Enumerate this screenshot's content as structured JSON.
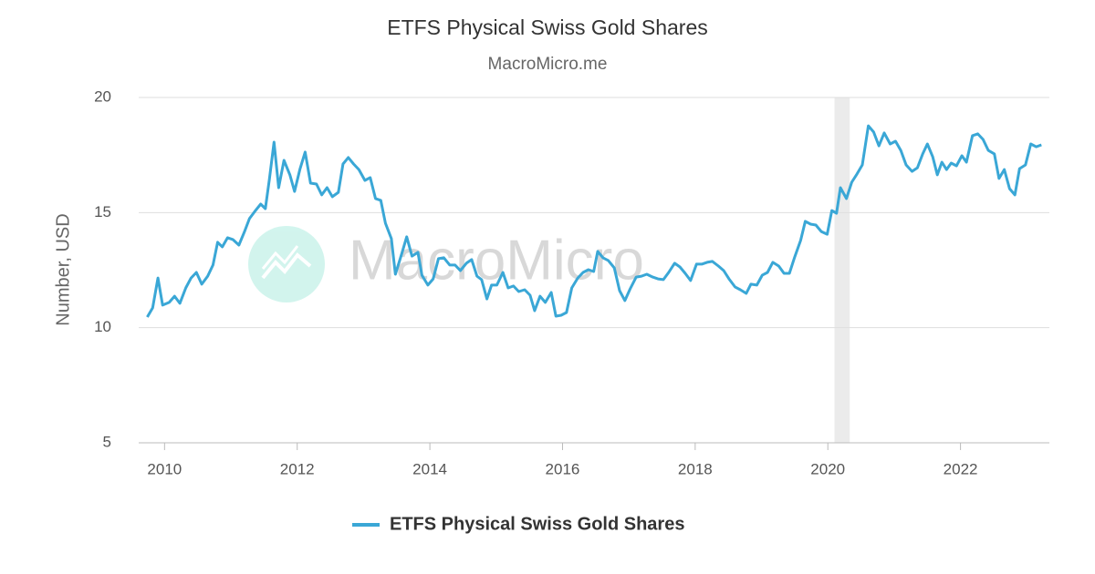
{
  "chart_data": {
    "type": "line",
    "title": "ETFS Physical Swiss Gold Shares",
    "subtitle": "MacroMicro.me",
    "watermark": "MacroMicro",
    "ylabel": "Number, USD",
    "xlim": [
      2009.61,
      2023.34
    ],
    "xticks": [
      2010,
      2012,
      2014,
      2016,
      2018,
      2020,
      2022
    ],
    "ylim": [
      5,
      20
    ],
    "yticks": [
      5,
      10,
      15,
      20
    ],
    "grid": true,
    "shade": [
      2020.1,
      2020.33
    ],
    "shade_color": "#ebebeb",
    "legend": "bottom",
    "x": [
      2009.74,
      2009.82,
      2009.9,
      2009.97,
      2010.07,
      2010.15,
      2010.23,
      2010.32,
      2010.4,
      2010.48,
      2010.56,
      2010.65,
      2010.73,
      2010.8,
      2010.87,
      2010.95,
      2011.03,
      2011.12,
      2011.2,
      2011.28,
      2011.36,
      2011.45,
      2011.52,
      2011.58,
      2011.65,
      2011.72,
      2011.8,
      2011.89,
      2011.96,
      2012.04,
      2012.12,
      2012.2,
      2012.29,
      2012.37,
      2012.45,
      2012.53,
      2012.62,
      2012.69,
      2012.77,
      2012.85,
      2012.93,
      2013.02,
      2013.1,
      2013.18,
      2013.26,
      2013.33,
      2013.42,
      2013.48,
      2013.57,
      2013.65,
      2013.73,
      2013.82,
      2013.88,
      2013.97,
      2014.05,
      2014.13,
      2014.21,
      2014.3,
      2014.38,
      2014.46,
      2014.55,
      2014.63,
      2014.71,
      2014.78,
      2014.86,
      2014.93,
      2015.01,
      2015.1,
      2015.18,
      2015.26,
      2015.34,
      2015.43,
      2015.51,
      2015.58,
      2015.66,
      2015.74,
      2015.83,
      2015.9,
      2015.98,
      2016.06,
      2016.14,
      2016.23,
      2016.31,
      2016.39,
      2016.47,
      2016.53,
      2016.61,
      2016.69,
      2016.78,
      2016.86,
      2016.94,
      2017.02,
      2017.11,
      2017.19,
      2017.27,
      2017.36,
      2017.44,
      2017.52,
      2017.6,
      2017.69,
      2017.77,
      2017.85,
      2017.93,
      2018.02,
      2018.1,
      2018.18,
      2018.26,
      2018.35,
      2018.43,
      2018.51,
      2018.6,
      2018.68,
      2018.77,
      2018.84,
      2018.93,
      2019.01,
      2019.09,
      2019.17,
      2019.26,
      2019.34,
      2019.42,
      2019.5,
      2019.59,
      2019.66,
      2019.74,
      2019.82,
      2019.9,
      2019.99,
      2020.06,
      2020.13,
      2020.19,
      2020.28,
      2020.36,
      2020.44,
      2020.52,
      2020.61,
      2020.69,
      2020.77,
      2020.85,
      2020.94,
      2021.02,
      2021.1,
      2021.18,
      2021.27,
      2021.35,
      2021.43,
      2021.5,
      2021.58,
      2021.65,
      2021.72,
      2021.79,
      2021.86,
      2021.94,
      2022.02,
      2022.09,
      2022.18,
      2022.26,
      2022.34,
      2022.42,
      2022.51,
      2022.58,
      2022.66,
      2022.74,
      2022.82,
      2022.89,
      2022.98,
      2023.06,
      2023.14,
      2023.22
    ],
    "series": [
      {
        "name": "ETFS Physical Swiss Gold Shares",
        "color": "#3aa7d6",
        "values": [
          10.46,
          10.86,
          12.16,
          10.98,
          11.1,
          11.37,
          11.06,
          11.73,
          12.16,
          12.4,
          11.89,
          12.24,
          12.72,
          13.71,
          13.51,
          13.91,
          13.83,
          13.59,
          14.14,
          14.74,
          15.05,
          15.37,
          15.17,
          16.44,
          18.06,
          16.08,
          17.27,
          16.64,
          15.92,
          16.87,
          17.63,
          16.28,
          16.24,
          15.77,
          16.08,
          15.69,
          15.88,
          17.11,
          17.39,
          17.11,
          16.87,
          16.4,
          16.52,
          15.61,
          15.53,
          14.54,
          13.87,
          12.32,
          13.15,
          13.95,
          13.11,
          13.27,
          12.28,
          11.85,
          12.12,
          13.0,
          13.04,
          12.72,
          12.72,
          12.48,
          12.8,
          12.96,
          12.24,
          12.09,
          11.25,
          11.85,
          11.85,
          12.4,
          11.73,
          11.81,
          11.57,
          11.65,
          11.41,
          10.74,
          11.37,
          11.1,
          11.53,
          10.5,
          10.54,
          10.66,
          11.73,
          12.16,
          12.4,
          12.52,
          12.44,
          13.31,
          13.04,
          12.92,
          12.6,
          11.61,
          11.18,
          11.69,
          12.2,
          12.24,
          12.32,
          12.2,
          12.12,
          12.09,
          12.4,
          12.8,
          12.64,
          12.36,
          12.05,
          12.76,
          12.76,
          12.84,
          12.88,
          12.68,
          12.48,
          12.12,
          11.77,
          11.65,
          11.49,
          11.89,
          11.85,
          12.28,
          12.4,
          12.84,
          12.68,
          12.36,
          12.36,
          13.07,
          13.79,
          14.62,
          14.5,
          14.46,
          14.18,
          14.06,
          15.09,
          14.97,
          16.08,
          15.61,
          16.32,
          16.68,
          17.07,
          18.77,
          18.5,
          17.9,
          18.46,
          17.98,
          18.1,
          17.7,
          17.07,
          16.79,
          16.95,
          17.55,
          17.98,
          17.43,
          16.64,
          17.19,
          16.87,
          17.15,
          17.03,
          17.47,
          17.19,
          18.34,
          18.42,
          18.18,
          17.7,
          17.55,
          16.48,
          16.87,
          16.04,
          15.77,
          16.91,
          17.07,
          17.98,
          17.86,
          17.94
        ]
      }
    ]
  }
}
